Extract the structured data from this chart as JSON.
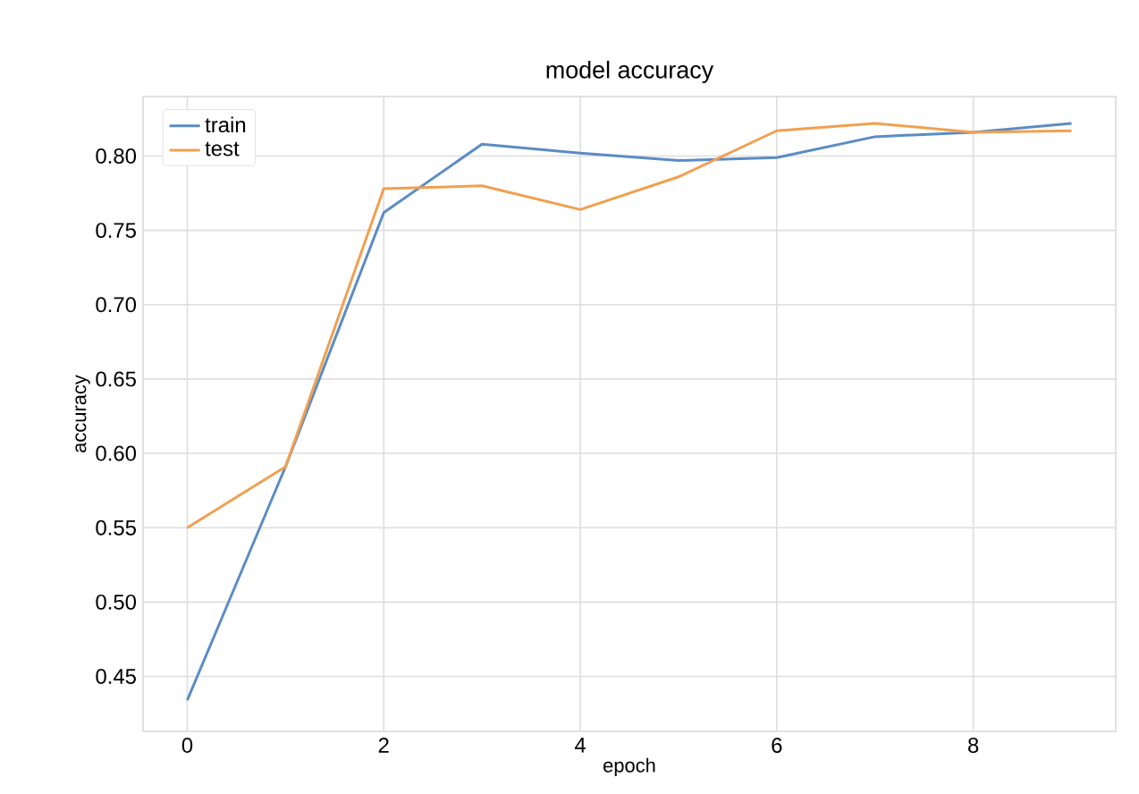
{
  "chart_data": {
    "type": "line",
    "title": "model accuracy",
    "xlabel": "epoch",
    "ylabel": "accuracy",
    "x": [
      0,
      1,
      2,
      3,
      4,
      5,
      6,
      7,
      8,
      9
    ],
    "series": [
      {
        "name": "train",
        "color": "#5b8cc4",
        "values": [
          0.434,
          0.591,
          0.762,
          0.808,
          0.802,
          0.797,
          0.799,
          0.813,
          0.816,
          0.822
        ]
      },
      {
        "name": "test",
        "color": "#f0a050",
        "values": [
          0.55,
          0.591,
          0.778,
          0.78,
          0.764,
          0.786,
          0.817,
          0.822,
          0.816,
          0.817
        ]
      }
    ],
    "xlim": [
      -0.45,
      9.45
    ],
    "ylim": [
      0.413,
      0.84
    ],
    "xticks": [
      0,
      2,
      4,
      6,
      8
    ],
    "yticks": [
      0.45,
      {
        "value": 0.5,
        "label": "0.50"
      },
      0.55,
      {
        "value": 0.6,
        "label": "0.60"
      },
      0.65,
      {
        "value": 0.7,
        "label": "0.70"
      },
      0.75,
      {
        "value": 0.8,
        "label": "0.80"
      }
    ],
    "grid": true,
    "legend": "top left",
    "marker": "none",
    "line_style": "solid"
  }
}
